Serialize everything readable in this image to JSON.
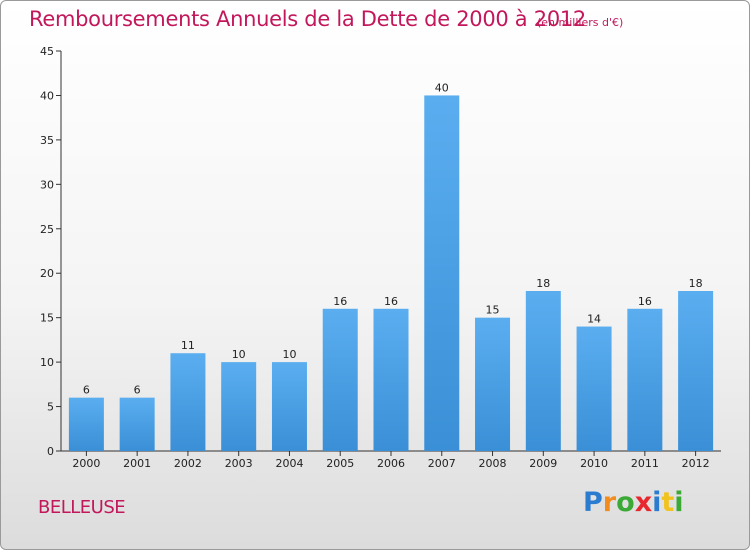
{
  "chart_data": {
    "type": "bar",
    "title": "Remboursements Annuels de la Dette de 2000 à 2012",
    "units_note": "(en milliers d'€)",
    "categories": [
      "2000",
      "2001",
      "2002",
      "2003",
      "2004",
      "2005",
      "2006",
      "2007",
      "2008",
      "2009",
      "2010",
      "2011",
      "2012"
    ],
    "values": [
      6,
      6,
      11,
      10,
      10,
      16,
      16,
      40,
      15,
      18,
      14,
      16,
      18
    ],
    "ylim": [
      0,
      45
    ],
    "yticks": [
      0,
      5,
      10,
      15,
      20,
      25,
      30,
      35,
      40,
      45
    ],
    "grid": false,
    "bar_color": "#3a8fd6",
    "xlabel": "",
    "ylabel": ""
  },
  "commune": "BELLEUSE",
  "logo": {
    "letters": [
      "P",
      "r",
      "o",
      "x",
      "i",
      "t",
      "i"
    ],
    "colors": [
      "#2b7cd0",
      "#f28c1e",
      "#3aa935",
      "#e8262e",
      "#2b7cd0",
      "#f2c21e",
      "#3aa935"
    ]
  },
  "colors": {
    "title": "#c2185b",
    "axis": "#333333"
  }
}
